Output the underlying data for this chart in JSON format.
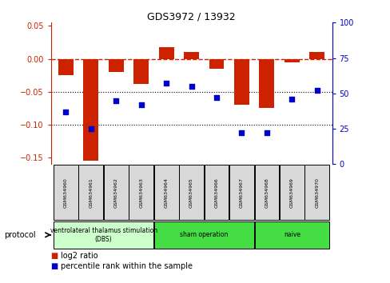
{
  "title": "GDS3972 / 13932",
  "samples": [
    "GSM634960",
    "GSM634961",
    "GSM634962",
    "GSM634963",
    "GSM634964",
    "GSM634965",
    "GSM634966",
    "GSM634967",
    "GSM634968",
    "GSM634969",
    "GSM634970"
  ],
  "log2_ratio": [
    -0.025,
    -0.155,
    -0.02,
    -0.038,
    0.018,
    0.01,
    -0.015,
    -0.07,
    -0.075,
    -0.005,
    0.01
  ],
  "percentile_rank": [
    37,
    25,
    45,
    42,
    57,
    55,
    47,
    22,
    22,
    46,
    52
  ],
  "ylim_left": [
    -0.16,
    0.055
  ],
  "ylim_right": [
    0,
    100
  ],
  "yticks_left": [
    0.05,
    0.0,
    -0.05,
    -0.1,
    -0.15
  ],
  "yticks_right": [
    100,
    75,
    50,
    25,
    0
  ],
  "bar_color": "#cc2200",
  "dot_color": "#0000cc",
  "zero_line_color": "#cc2200",
  "grid_color": "#000000",
  "protocol_groups": [
    {
      "label": "ventrolateral thalamus stimulation\n(DBS)",
      "start": 0,
      "end": 3,
      "color": "#ccffcc"
    },
    {
      "label": "sham operation",
      "start": 4,
      "end": 7,
      "color": "#44dd44"
    },
    {
      "label": "naive",
      "start": 8,
      "end": 10,
      "color": "#44dd44"
    }
  ],
  "legend_bar_label": "log2 ratio",
  "legend_dot_label": "percentile rank within the sample",
  "protocol_label": "protocol"
}
